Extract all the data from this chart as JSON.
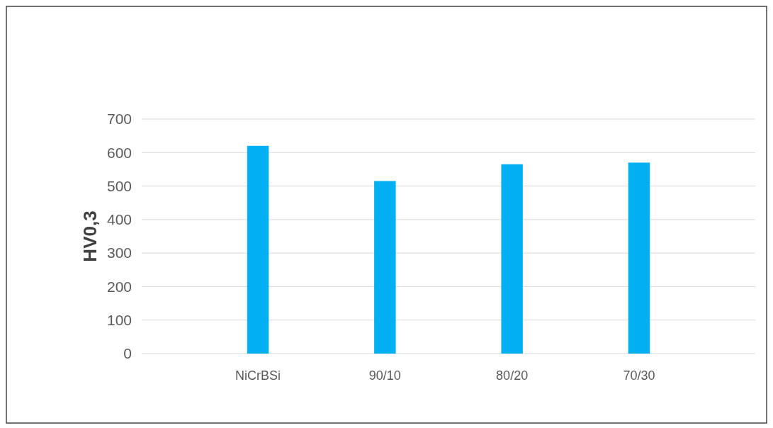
{
  "chart_data": {
    "type": "bar",
    "ylabel": "HV0,3",
    "categories": [
      "NiCrBSi",
      "90/10",
      "80/20",
      "70/30"
    ],
    "values": [
      620,
      515,
      565,
      570
    ],
    "color": "#00b0f0",
    "ylim": [
      0,
      700
    ],
    "yticks": [
      0,
      100,
      200,
      300,
      400,
      500,
      600,
      700
    ],
    "grid": "y"
  }
}
